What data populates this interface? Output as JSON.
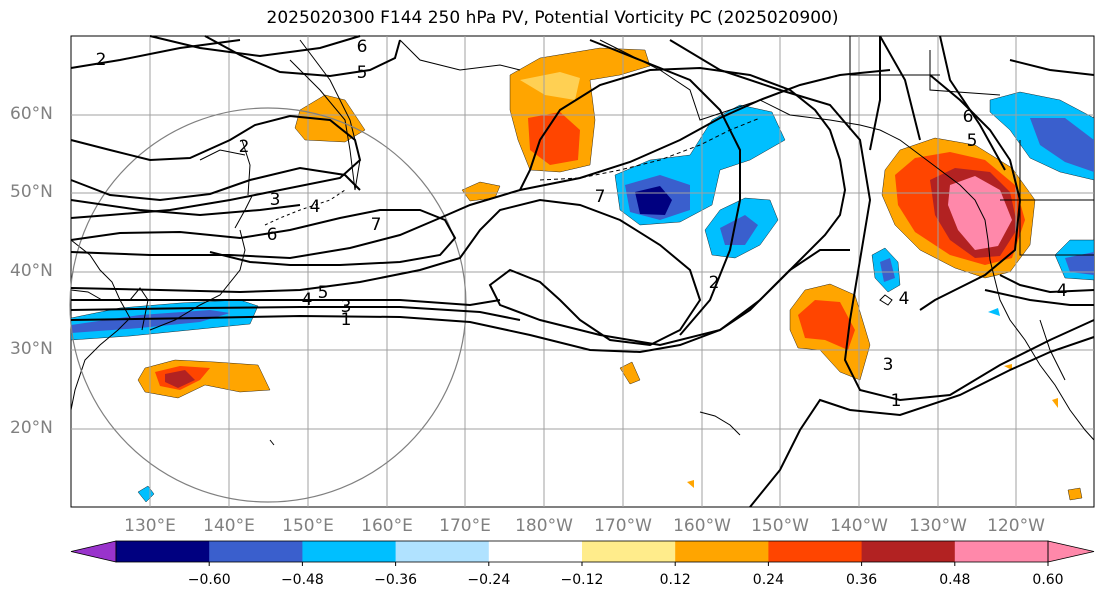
{
  "title": "2025020300 F144 250 hPa PV, Potential Vorticity PC (2025020900)",
  "lat_labels": [
    "60°N",
    "50°N",
    "40°N",
    "30°N",
    "20°N"
  ],
  "lon_labels": [
    "130°E",
    "140°E",
    "150°E",
    "160°E",
    "170°E",
    "180°W",
    "170°W",
    "160°W",
    "150°W",
    "140°W",
    "130°W",
    "120°W"
  ],
  "contour_labels": [
    "2",
    "6",
    "5",
    "2",
    "3",
    "4",
    "6",
    "7",
    "5",
    "4",
    "3",
    "1",
    "7",
    "2",
    "6",
    "5",
    "3",
    "1",
    "4",
    "4"
  ],
  "colorbar": {
    "ticks": [
      "−0.60",
      "−0.48",
      "−0.36",
      "−0.24",
      "−0.12",
      "0.12",
      "0.24",
      "0.36",
      "0.48",
      "0.60"
    ],
    "colors": [
      "#9933cc",
      "#000080",
      "#3a5fcd",
      "#00bfff",
      "#b0e2ff",
      "#ffffff",
      "#ffec8b",
      "#ffa500",
      "#ff4500",
      "#b22222",
      "#ff88aa",
      "#ffffff"
    ]
  },
  "map_colors": {
    "land_outline": "#000000",
    "grid": "#a0a0a0",
    "contour": "#000000",
    "circle": "#808080"
  }
}
